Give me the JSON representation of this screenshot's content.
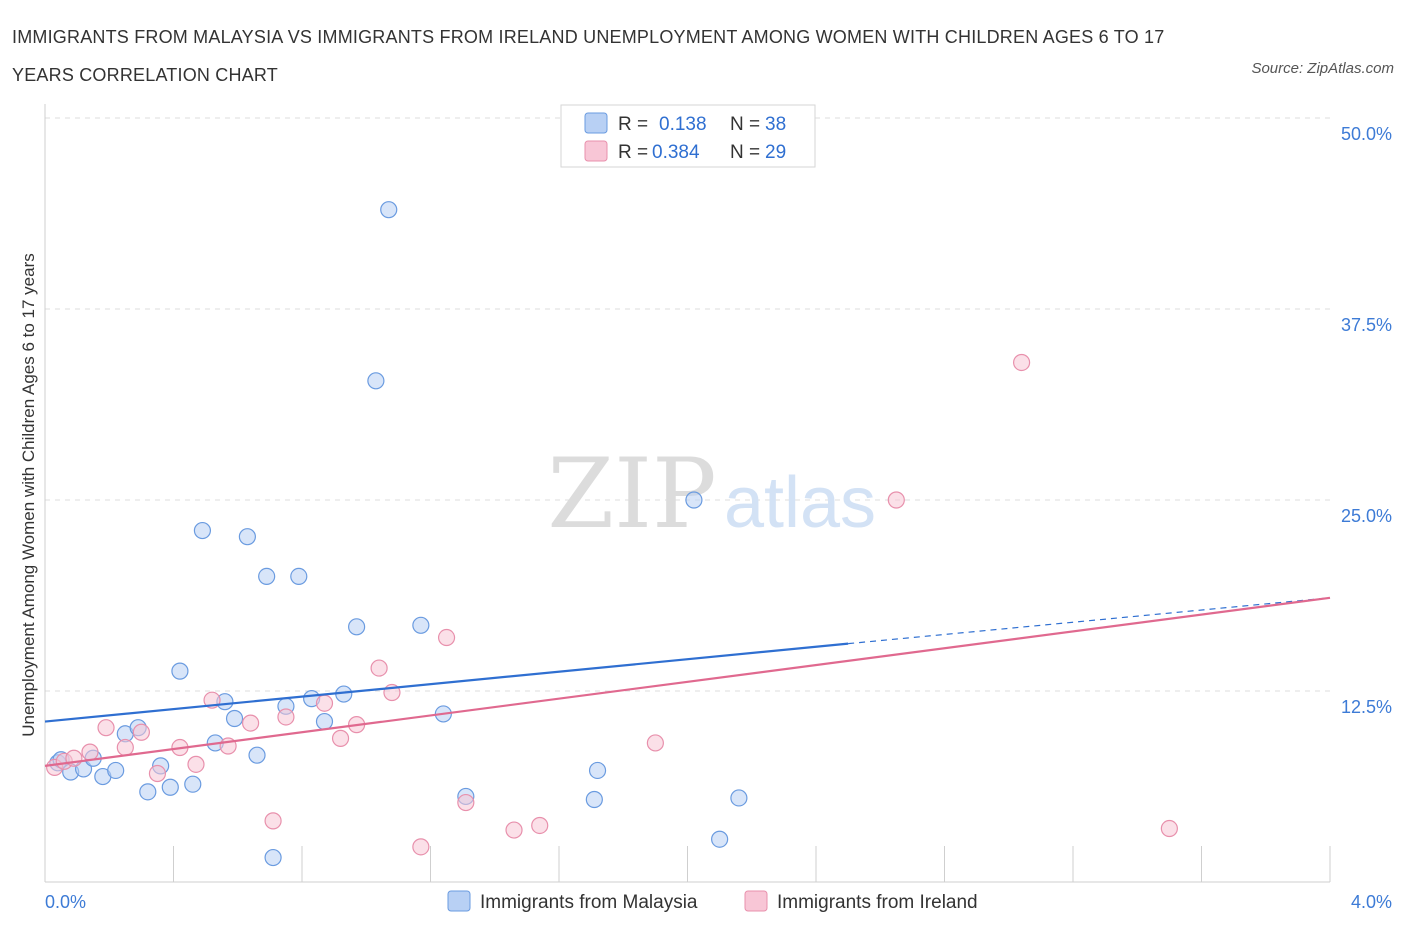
{
  "title": "IMMIGRANTS FROM MALAYSIA VS IMMIGRANTS FROM IRELAND UNEMPLOYMENT AMONG WOMEN WITH CHILDREN AGES 6 TO 17 YEARS CORRELATION CHART",
  "source": "Source: ZipAtlas.com",
  "watermark": {
    "zip": "ZIP",
    "atlas": "atlas"
  },
  "stats_box": {
    "r_label": "R =",
    "n_label": "N =",
    "rows": [
      {
        "series": "Immigrants from Malaysia",
        "r": "0.138",
        "n": "38"
      },
      {
        "series": "Immigrants from Ireland",
        "r": "0.384",
        "n": "29"
      }
    ]
  },
  "colors": {
    "malaysia_fill": "#b8d0f4",
    "malaysia_stroke": "#6a9be0",
    "malaysia_line": "#2f6fd1",
    "ireland_fill": "#f8c6d6",
    "ireland_stroke": "#e890ac",
    "ireland_line": "#e0698f",
    "grid": "#dddddd",
    "axis_label": "#3d7bd6"
  },
  "chart_data": {
    "type": "scatter",
    "title": "IMMIGRANTS FROM MALAYSIA VS IMMIGRANTS FROM IRELAND UNEMPLOYMENT AMONG WOMEN WITH CHILDREN AGES 6 TO 17 YEARS CORRELATION CHART",
    "xlabel": "",
    "ylabel": "Unemployment Among Women with Children Ages 6 to 17 years",
    "xlim": [
      0,
      4.0
    ],
    "ylim": [
      0,
      50
    ],
    "x_tick_labels": [
      "0.0%",
      "4.0%"
    ],
    "y_ticks": [
      12.5,
      25.0,
      37.5,
      50.0
    ],
    "y_tick_labels": [
      "12.5%",
      "25.0%",
      "37.5%",
      "50.0%"
    ],
    "grid": true,
    "legend_position": "bottom",
    "series": [
      {
        "name": "Immigrants from Malaysia",
        "r": 0.138,
        "n": 38,
        "trend": {
          "x": [
            0,
            2.5
          ],
          "y": [
            10.5,
            15.6
          ],
          "dashed_to": [
            4.0,
            18.6
          ]
        },
        "points": [
          [
            0.04,
            7.8
          ],
          [
            0.05,
            8.0
          ],
          [
            0.08,
            7.2
          ],
          [
            0.12,
            7.4
          ],
          [
            0.15,
            8.1
          ],
          [
            0.18,
            6.9
          ],
          [
            0.22,
            7.3
          ],
          [
            0.25,
            9.7
          ],
          [
            0.29,
            10.1
          ],
          [
            0.32,
            5.9
          ],
          [
            0.36,
            7.6
          ],
          [
            0.39,
            6.2
          ],
          [
            0.42,
            13.8
          ],
          [
            0.46,
            6.4
          ],
          [
            0.49,
            23.0
          ],
          [
            0.53,
            9.1
          ],
          [
            0.56,
            11.8
          ],
          [
            0.59,
            10.7
          ],
          [
            0.63,
            22.6
          ],
          [
            0.66,
            8.3
          ],
          [
            0.69,
            20.0
          ],
          [
            0.71,
            1.6
          ],
          [
            0.75,
            11.5
          ],
          [
            0.79,
            20.0
          ],
          [
            0.83,
            12.0
          ],
          [
            0.87,
            10.5
          ],
          [
            0.93,
            12.3
          ],
          [
            0.97,
            16.7
          ],
          [
            1.03,
            32.8
          ],
          [
            1.07,
            44.0
          ],
          [
            1.17,
            16.8
          ],
          [
            1.24,
            11.0
          ],
          [
            1.31,
            5.6
          ],
          [
            1.71,
            5.4
          ],
          [
            1.72,
            7.3
          ],
          [
            2.02,
            25.0
          ],
          [
            2.1,
            2.8
          ],
          [
            2.16,
            5.5
          ]
        ]
      },
      {
        "name": "Immigrants from Ireland",
        "r": 0.384,
        "n": 29,
        "trend": {
          "x": [
            0,
            4.0
          ],
          "y": [
            7.6,
            18.6
          ]
        },
        "points": [
          [
            0.03,
            7.5
          ],
          [
            0.06,
            7.9
          ],
          [
            0.09,
            8.1
          ],
          [
            0.14,
            8.5
          ],
          [
            0.19,
            10.1
          ],
          [
            0.25,
            8.8
          ],
          [
            0.3,
            9.8
          ],
          [
            0.35,
            7.1
          ],
          [
            0.42,
            8.8
          ],
          [
            0.47,
            7.7
          ],
          [
            0.52,
            11.9
          ],
          [
            0.57,
            8.9
          ],
          [
            0.64,
            10.4
          ],
          [
            0.71,
            4.0
          ],
          [
            0.75,
            10.8
          ],
          [
            0.87,
            11.7
          ],
          [
            0.92,
            9.4
          ],
          [
            0.97,
            10.3
          ],
          [
            1.04,
            14.0
          ],
          [
            1.08,
            12.4
          ],
          [
            1.17,
            2.3
          ],
          [
            1.25,
            16.0
          ],
          [
            1.31,
            5.2
          ],
          [
            1.46,
            3.4
          ],
          [
            1.54,
            3.7
          ],
          [
            1.9,
            9.1
          ],
          [
            2.65,
            25.0
          ],
          [
            3.04,
            34.0
          ],
          [
            3.5,
            3.5
          ]
        ]
      }
    ]
  }
}
